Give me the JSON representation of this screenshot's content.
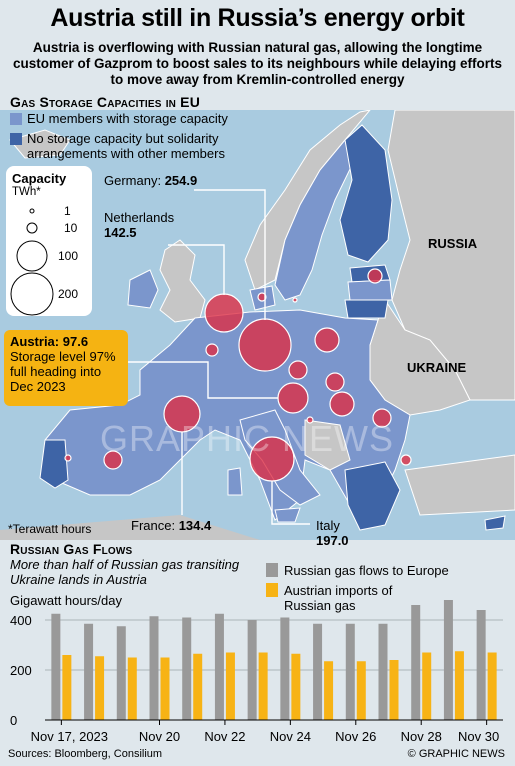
{
  "title": "Austria still in Russia’s energy orbit",
  "subtitle": "Austria is overflowing with Russian natural gas, allowing the longtime customer of Gazprom to boost sales to its neighbours while delaying efforts to move away from Kremlin-controlled energy",
  "map": {
    "section_title": "Gas Storage Capacities in EU",
    "legend": [
      {
        "label": "EU members with storage capacity",
        "color": "#7b96cc"
      },
      {
        "label": "No storage capacity but solidarity arrangements with other members",
        "color": "#3e64a6"
      }
    ],
    "country_labels": {
      "russia": "RUSSIA",
      "ukraine": "UKRAINE"
    },
    "capacity_legend": {
      "title": "Capacity",
      "unit": "TWh*",
      "sizes": [
        "1",
        "10",
        "100",
        "200"
      ]
    },
    "callouts": {
      "germany": {
        "name": "Germany:",
        "value": "254.9"
      },
      "netherlands": {
        "name": "Netherlands",
        "value": "142.5"
      },
      "austria": {
        "name": "Austria:",
        "value": "97.6",
        "note": "Storage level 97% full heading into Dec 2023"
      },
      "france": {
        "name": "France:",
        "value": "134.4"
      },
      "italy": {
        "name": "Italy",
        "value": "197.0"
      }
    },
    "footnote": "*Terawatt hours",
    "bubble_color": "#dd2e45",
    "watermark": "GRAPHIC NEWS"
  },
  "flows": {
    "section_title": "Russian Gas Flows",
    "subtitle": "More than half of Russian gas transiting Ukraine lands in Austria",
    "unit_label": "Gigawatt hours/day"
  },
  "chart_data": {
    "type": "bar",
    "categories": [
      "Nov 17",
      "Nov 18",
      "Nov 19",
      "Nov 20",
      "Nov 21",
      "Nov 22",
      "Nov 23",
      "Nov 24",
      "Nov 25",
      "Nov 26",
      "Nov 27",
      "Nov 28",
      "Nov 29",
      "Nov 30"
    ],
    "x_tick_labels": [
      "Nov 17, 2023",
      "Nov 20",
      "Nov 22",
      "Nov 24",
      "Nov 26",
      "Nov 28",
      "Nov 30"
    ],
    "series": [
      {
        "name": "Russian gas flows to Europe",
        "color": "#999999",
        "values": [
          425,
          385,
          375,
          415,
          410,
          425,
          400,
          410,
          385,
          385,
          385,
          460,
          490,
          440
        ]
      },
      {
        "name": "Austrian imports of Russian gas",
        "color": "#f7b315",
        "values": [
          260,
          255,
          250,
          250,
          265,
          270,
          270,
          265,
          235,
          235,
          240,
          270,
          275,
          270
        ]
      }
    ],
    "yticks": [
      0,
      200,
      400
    ],
    "ylim": [
      0,
      440
    ],
    "grid": true
  },
  "source": "Sources: Bloomberg, Consilium",
  "credit": "© GRAPHIC NEWS"
}
